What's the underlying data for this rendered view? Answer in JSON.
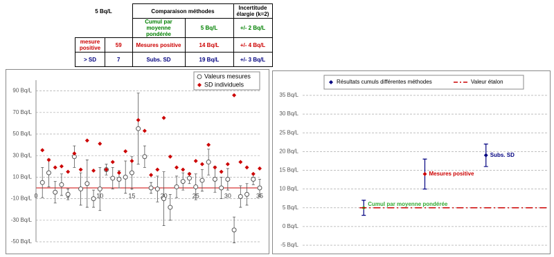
{
  "table": {
    "rows": [
      [
        "5 Bq/L",
        "Comparaison méthodes",
        "Incertitude élargie (k=2)"
      ],
      [
        "Cumul par moyenne pondérée",
        "5 Bq/L",
        "+/- 2 Bq/L"
      ],
      [
        "mesure positive",
        "59",
        "Mesures positive",
        "14 Bq/L",
        "+/- 4 Bq/L"
      ],
      [
        "> SD",
        "7",
        "Subs. SD",
        "19 Bq/L",
        "+/- 3 Bq/L"
      ]
    ]
  },
  "chart_data": [
    {
      "type": "scatter",
      "x": [
        1,
        2,
        3,
        4,
        5,
        6,
        7,
        8,
        9,
        10,
        11,
        12,
        13,
        14,
        15,
        16,
        17,
        18,
        19,
        20,
        21,
        22,
        23,
        24,
        25,
        26,
        27,
        28,
        29,
        30,
        31,
        32,
        33,
        34,
        35
      ],
      "xlim": [
        0,
        35
      ],
      "xticks": [
        0,
        5,
        10,
        15,
        20,
        25,
        30,
        35
      ],
      "ylim": [
        -50,
        100
      ],
      "yticks": [
        {
          "value": -50,
          "label": "-50 Bq/L"
        },
        {
          "value": -30,
          "label": "-30 Bq/L"
        },
        {
          "value": -10,
          "label": "-10 Bq/L"
        },
        {
          "value": 10,
          "label": "10 Bq/L"
        },
        {
          "value": 30,
          "label": "30 Bq/L"
        },
        {
          "value": 50,
          "label": "50 Bq/L"
        },
        {
          "value": 70,
          "label": "70 Bq/L"
        },
        {
          "value": 90,
          "label": "90 Bq/L"
        }
      ],
      "grid": true,
      "legend": "top-right",
      "series": [
        {
          "name": "Valeurs mesures",
          "color": "#ffffff",
          "marker": "circle",
          "values": [
            5,
            14,
            -4,
            3,
            -6,
            29,
            -1,
            4,
            -10,
            -1,
            17,
            9,
            8,
            10,
            14,
            55,
            29,
            0,
            -1,
            -10,
            -18,
            1,
            6,
            9,
            1,
            7,
            24,
            8,
            0,
            8,
            -39,
            -8,
            -6,
            8,
            0
          ],
          "errors": [
            14,
            13,
            10,
            10,
            5,
            10,
            15,
            22,
            8,
            20,
            5,
            10,
            8,
            15,
            15,
            33,
            10,
            5,
            12,
            25,
            12,
            10,
            8,
            5,
            12,
            10,
            12,
            12,
            10,
            10,
            12,
            10,
            10,
            5,
            8
          ]
        },
        {
          "name": "SD individuels",
          "color": "#cc0000",
          "marker": "diamond",
          "values": [
            35,
            26,
            19,
            20,
            15,
            32,
            17,
            44,
            16,
            41,
            17,
            24,
            14,
            34,
            25,
            63,
            53,
            12,
            17,
            65,
            29,
            19,
            17,
            13,
            25,
            22,
            40,
            19,
            15,
            22,
            86,
            24,
            19,
            13,
            18
          ]
        }
      ]
    },
    {
      "type": "errorbar",
      "x": [
        1,
        2,
        3
      ],
      "xlim": [
        0,
        4
      ],
      "ylim": [
        -5,
        35
      ],
      "yticks": [
        {
          "value": -5,
          "label": "-5 Bq/L"
        },
        {
          "value": 0,
          "label": "0 Bq/L"
        },
        {
          "value": 5,
          "label": "5 Bq/L"
        },
        {
          "value": 10,
          "label": "10 Bq/L"
        },
        {
          "value": 15,
          "label": "15 Bq/L"
        },
        {
          "value": 20,
          "label": "20 Bq/L"
        },
        {
          "value": 25,
          "label": "25 Bq/L"
        },
        {
          "value": 30,
          "label": "30 Bq/L"
        },
        {
          "value": 35,
          "label": "35 Bq/L"
        }
      ],
      "grid": true,
      "legend": "top",
      "series": [
        {
          "name": "Résultats cumuls différentes méthodes",
          "color": "#000080",
          "values": [
            5,
            14,
            19
          ],
          "errors": [
            2,
            4,
            3
          ],
          "point_colors": [
            "#33aa33",
            "#cc0000",
            "#000080"
          ],
          "point_labels": [
            "Cumul par moyenne pondérée",
            "Mesures positive",
            "Subs. SD"
          ]
        },
        {
          "name": "Valeur étalon",
          "color": "#cc0000",
          "type": "line",
          "value": 5
        }
      ]
    }
  ]
}
